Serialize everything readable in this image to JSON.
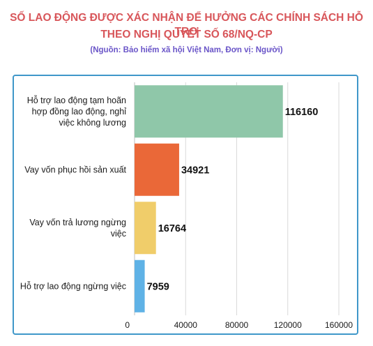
{
  "header": {
    "title_line1": "SỐ LAO ĐỘNG ĐƯỢC XÁC NHẬN ĐỂ HƯỞNG CÁC CHÍNH SÁCH HỖ TRỢ",
    "title_line2": "THEO NGHỊ QUYẾT SỐ 68/NQ-CP",
    "subtitle": "(Nguồn: Bảo hiểm xã hội Việt Nam, Đơn vị: Người)"
  },
  "chart_data": {
    "type": "bar",
    "orientation": "horizontal",
    "title": "SỐ LAO ĐỘNG ĐƯỢC XÁC NHẬN ĐỂ HƯỞNG CÁC CHÍNH SÁCH HỖ TRỢ THEO NGHỊ QUYẾT SỐ 68/NQ-CP",
    "subtitle": "(Nguồn: Bảo hiểm xã hội Việt Nam, Đơn vị: Người)",
    "categories": [
      [
        "Hỗ trợ lao động tạm hoãn",
        "hợp đồng lao động, nghỉ",
        "việc không lương"
      ],
      [
        "Vay vốn phục hồi sản xuất"
      ],
      [
        "Vay vốn trả lương ngừng",
        "việc"
      ],
      [
        "Hỗ trợ lao động ngừng việc"
      ]
    ],
    "values": [
      116160,
      34921,
      16764,
      7959
    ],
    "colors": [
      "#8fc7a9",
      "#ea6838",
      "#f0cd6a",
      "#5fb2e6"
    ],
    "xlim": [
      0,
      160000
    ],
    "xticks": [
      0,
      40000,
      80000,
      120000,
      160000
    ],
    "grid": true,
    "data_labels": true
  }
}
